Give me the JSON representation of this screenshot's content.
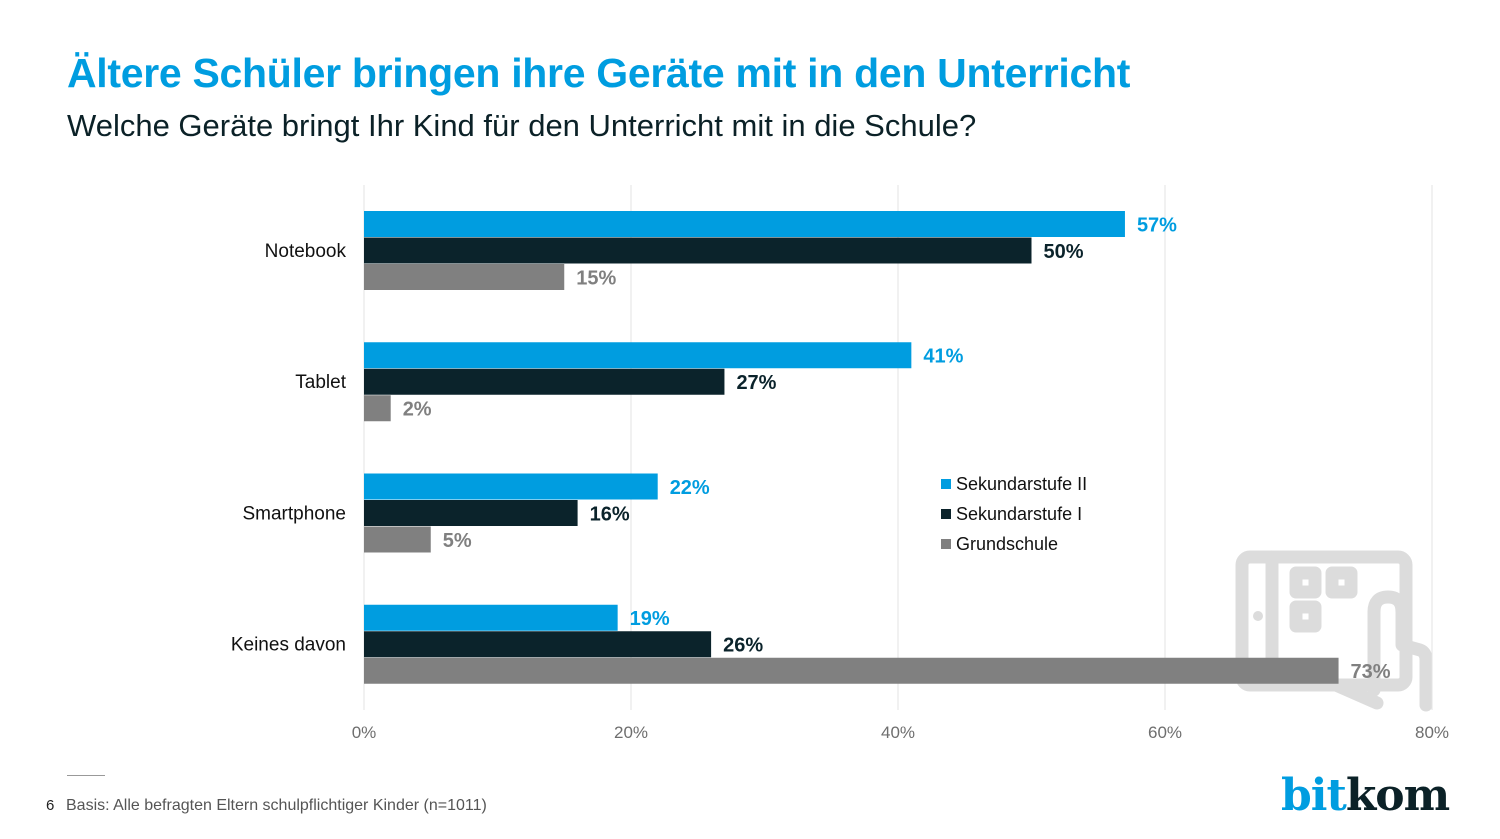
{
  "header": {
    "title": "Ältere Schüler bringen ihre Geräte mit in den Unterricht",
    "subtitle": "Welche Geräte bringt Ihr Kind für den Unterricht mit in die Schule?"
  },
  "footer": {
    "page_number": "6",
    "note": "Basis: Alle befragten Eltern schulpflichtiger Kinder (n=1011)",
    "logo_part1": "bit",
    "logo_part2": "kom"
  },
  "colors": {
    "sek2": "#009de0",
    "sek1": "#0b232b",
    "grund": "#808080",
    "grid": "#e3e3e3",
    "tick": "#6e6e6e",
    "decor_icon": "#dcdcdc"
  },
  "decor_icon": "tablet-touch-icon",
  "chart_data": {
    "type": "bar",
    "orientation": "horizontal",
    "title": "Ältere Schüler bringen ihre Geräte mit in den Unterricht",
    "subtitle": "Welche Geräte bringt Ihr Kind für den Unterricht mit in die Schule?",
    "xlabel": "",
    "ylabel": "",
    "categories": [
      "Notebook",
      "Tablet",
      "Smartphone",
      "Keines davon"
    ],
    "series": [
      {
        "name": "Sekundarstufe II",
        "values": [
          57,
          41,
          22,
          19
        ]
      },
      {
        "name": "Sekundarstufe I",
        "values": [
          50,
          27,
          16,
          26
        ]
      },
      {
        "name": "Grundschule",
        "values": [
          15,
          2,
          5,
          73
        ]
      }
    ],
    "value_suffix": "%",
    "xlim": [
      0,
      80
    ],
    "xticks": [
      0,
      20,
      40,
      60,
      80
    ],
    "xtick_labels": [
      "0%",
      "20%",
      "40%",
      "60%",
      "80%"
    ],
    "grid": true,
    "legend": {
      "position": "right-center",
      "entries": [
        "Sekundarstufe II",
        "Sekundarstufe I",
        "Grundschule"
      ]
    }
  }
}
